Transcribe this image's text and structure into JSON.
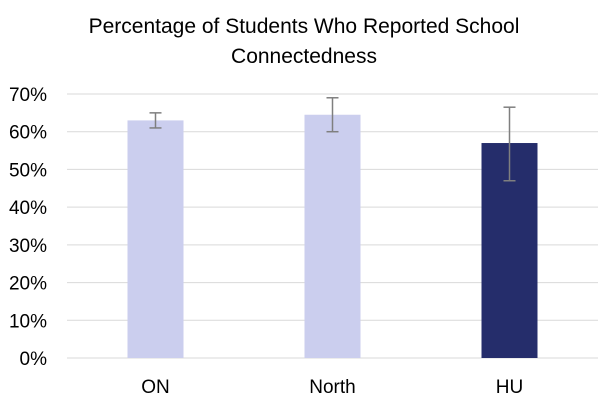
{
  "chart_data": {
    "type": "bar",
    "title": "Percentage of Students Who Reported School Connectedness",
    "categories": [
      "ON",
      "North",
      "HU"
    ],
    "values": [
      63,
      64.5,
      57
    ],
    "error_bars": [
      {
        "low": 61,
        "high": 65
      },
      {
        "low": 60,
        "high": 69
      },
      {
        "low": 47,
        "high": 66.5
      }
    ],
    "bar_colors": [
      "#CBCEEE",
      "#CBCEEE",
      "#252D6B"
    ],
    "error_bar_color": "#7F7F7F",
    "ylim": [
      0,
      70
    ],
    "yticks": [
      "0%",
      "10%",
      "20%",
      "30%",
      "40%",
      "50%",
      "60%",
      "70%"
    ],
    "ytick_values": [
      0,
      10,
      20,
      30,
      40,
      50,
      60,
      70
    ],
    "grid": true,
    "grid_color": "#D9D9D9",
    "legend": "none",
    "xlabel": "",
    "ylabel": ""
  }
}
